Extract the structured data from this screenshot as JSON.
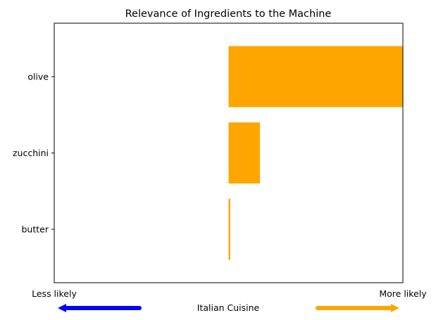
{
  "chart_data": {
    "type": "bar",
    "orientation": "horizontal",
    "title": "Relevance of Ingredients to the Machine",
    "xlabel": "Italian Cuisine",
    "left_end_label": "Less likely",
    "right_end_label": "More likely",
    "categories": [
      "olive",
      "zucchini",
      "butter"
    ],
    "values": [
      0.5,
      0.09,
      0.005
    ],
    "xlim": [
      -0.5,
      0.5
    ],
    "bar_color": "#ffa500",
    "left_arrow_color": "#0000ff",
    "right_arrow_color": "#ffa500",
    "grid": false
  }
}
